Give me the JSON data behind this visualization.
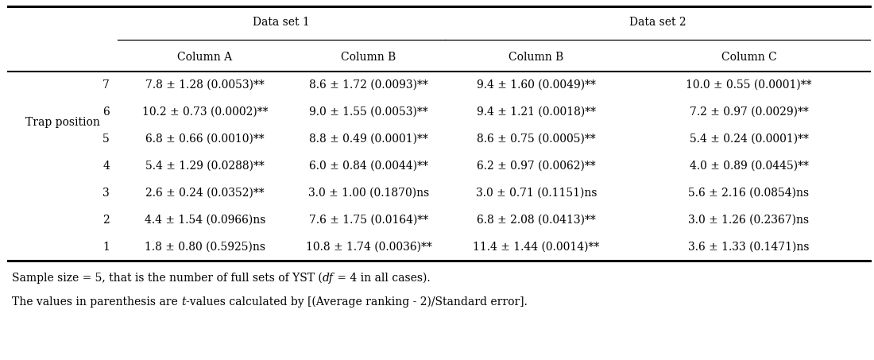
{
  "header_row1_left": "Trap position",
  "header_ds1": "Data set 1",
  "header_ds2": "Data set 2",
  "subheaders": [
    "Column A",
    "Column B",
    "Column B",
    "Column C"
  ],
  "rows": [
    [
      "7",
      "7.8 ± 1.28 (0.0053)**",
      "8.6 ± 1.72 (0.0093)**",
      "9.4 ± 1.60 (0.0049)**",
      "10.0 ± 0.55 (0.0001)**"
    ],
    [
      "6",
      "10.2 ± 0.73 (0.0002)**",
      "9.0 ± 1.55 (0.0053)**",
      "9.4 ± 1.21 (0.0018)**",
      "7.2 ± 0.97 (0.0029)**"
    ],
    [
      "5",
      "6.8 ± 0.66 (0.0010)**",
      "8.8 ± 0.49 (0.0001)**",
      "8.6 ± 0.75 (0.0005)**",
      "5.4 ± 0.24 (0.0001)**"
    ],
    [
      "4",
      "5.4 ± 1.29 (0.0288)**",
      "6.0 ± 0.84 (0.0044)**",
      "6.2 ± 0.97 (0.0062)**",
      "4.0 ± 0.89 (0.0445)**"
    ],
    [
      "3",
      "2.6 ± 0.24 (0.0352)**",
      "3.0 ± 1.00 (0.1870)ns",
      "3.0 ± 0.71 (0.1151)ns",
      "5.6 ± 2.16 (0.0854)ns"
    ],
    [
      "2",
      "4.4 ± 1.54 (0.0966)ns",
      "7.6 ± 1.75 (0.0164)**",
      "6.8 ± 2.08 (0.0413)**",
      "3.0 ± 1.26 (0.2367)ns"
    ],
    [
      "1",
      "1.8 ± 0.80 (0.5925)ns",
      "10.8 ± 1.74 (0.0036)**",
      "11.4 ± 1.44 (0.0014)**",
      "3.6 ± 1.33 (0.1471)ns"
    ]
  ],
  "footnote1_parts": [
    [
      "Sample size = 5, that is the number of full sets of YST (",
      "normal"
    ],
    [
      "df",
      "italic"
    ],
    [
      " = 4 in all cases).",
      "normal"
    ]
  ],
  "footnote2_parts": [
    [
      "The values in parenthesis are ",
      "normal"
    ],
    [
      "t",
      "italic"
    ],
    [
      "-values calculated by [(Average ranking - 2)/Standard error].",
      "normal"
    ]
  ],
  "bg_color": "#ffffff",
  "text_color": "#000000",
  "font_size": 10.0,
  "font_family": "DejaVu Serif"
}
